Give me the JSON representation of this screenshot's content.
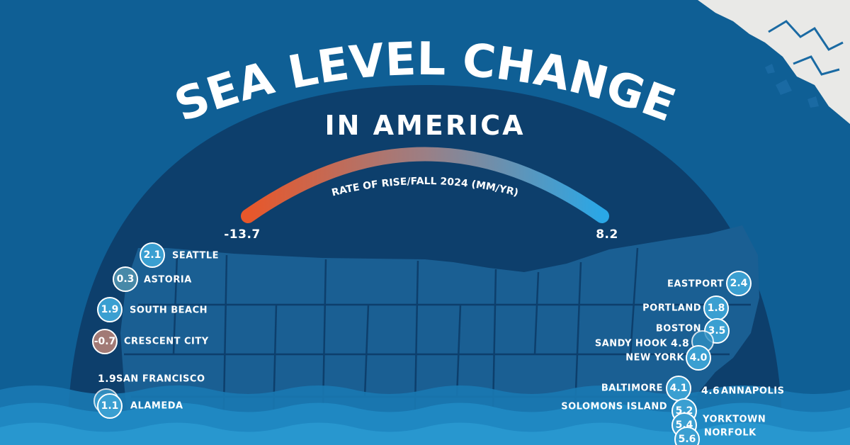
{
  "title": {
    "line1": "SEA LEVEL CHANGE",
    "line2": "IN AMERICA"
  },
  "scale": {
    "label": "RATE OF RISE/FALL 2024 (MM/YR)",
    "min": "-13.7",
    "max": "8.2",
    "min_value": -13.7,
    "max_value": 8.2,
    "gradient_start_color": "#e8572a",
    "gradient_end_color": "#2aa7e6"
  },
  "colors": {
    "ocean": "#0f5f95",
    "dome": "#0d3f6c",
    "bubble_rise": "#3a9fd1",
    "bubble_fall": "#a27a76",
    "ice": "#e9e9e7"
  },
  "west_coast": [
    {
      "city": "SEATTLE",
      "value": "2.1"
    },
    {
      "city": "ASTORIA",
      "value": "0.3"
    },
    {
      "city": "SOUTH BEACH",
      "value": "1.9"
    },
    {
      "city": "CRESCENT CITY",
      "value": "-0.7"
    },
    {
      "city": "SAN FRANCISCO",
      "value": "1.9"
    },
    {
      "city": "ALAMEDA",
      "value": "1.1"
    }
  ],
  "east_coast": [
    {
      "city": "EASTPORT",
      "value": "2.4"
    },
    {
      "city": "PORTLAND",
      "value": "1.8"
    },
    {
      "city": "BOSTON",
      "value": "3.5"
    },
    {
      "city": "SANDY HOOK",
      "value": "4.8"
    },
    {
      "city": "NEW YORK",
      "value": "4.0"
    },
    {
      "city": "BALTIMORE",
      "value": "4.1"
    },
    {
      "city": "ANNAPOLIS",
      "value": "4.6"
    },
    {
      "city": "SOLOMONS ISLAND",
      "value": "5.2"
    },
    {
      "city": "YORKTOWN",
      "value": "5.4"
    },
    {
      "city": "NORFOLK",
      "value": "5.6"
    }
  ]
}
